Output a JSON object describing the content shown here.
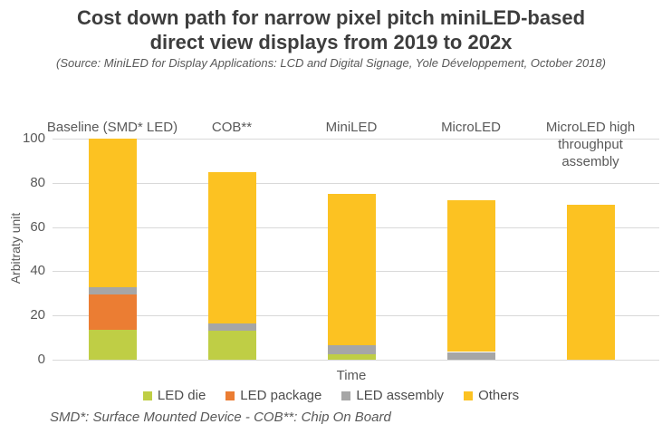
{
  "header": {
    "title_line1": "Cost down path for narrow pixel pitch miniLED-based",
    "title_line2": "direct view displays from 2019 to 202x",
    "source": "(Source: MiniLED for Display Applications: LCD and Digital Signage, Yole Développement, October 2018)"
  },
  "footnote": "SMD*: Surface Mounted Device - COB**: Chip On Board",
  "colors": {
    "title_text": "#3d3d3d",
    "axis_text": "#595959",
    "gridline": "#d9d9d9",
    "led_die": "#bfce45",
    "led_package": "#eb7d33",
    "led_assembly": "#a6a6a6",
    "others": "#fcc222"
  },
  "chart_data": {
    "type": "bar",
    "stacked": true,
    "title": "Cost down path for narrow pixel pitch miniLED-based direct view displays from 2019 to 202x",
    "categories": [
      "Baseline (SMD* LED)",
      "COB**",
      "MiniLED",
      "MicroLED",
      "MicroLED high throughput assembly"
    ],
    "category_display": [
      "Baseline (SMD* LED)",
      "COB**",
      "MiniLED",
      "MicroLED",
      "MicroLED high\nthroughput\nassembly"
    ],
    "series": [
      {
        "name": "LED die",
        "color": "#bfce45",
        "values": [
          13.5,
          13,
          2.5,
          0,
          0
        ]
      },
      {
        "name": "LED package",
        "color": "#eb7d33",
        "values": [
          16,
          0,
          0,
          0,
          0
        ]
      },
      {
        "name": "LED assembly",
        "color": "#a6a6a6",
        "values": [
          3.5,
          3.5,
          4,
          3.5,
          0
        ]
      },
      {
        "name": "Others",
        "color": "#fcc222",
        "values": [
          67,
          68.5,
          68.5,
          68.5,
          70
        ]
      }
    ],
    "totals": [
      100,
      85,
      75,
      72,
      70
    ],
    "xlabel": "Time",
    "ylabel": "Arbitraty unit",
    "ylim": [
      0,
      100
    ],
    "yticks": [
      0,
      20,
      40,
      60,
      80,
      100
    ],
    "grid": true,
    "legend_position": "bottom"
  }
}
